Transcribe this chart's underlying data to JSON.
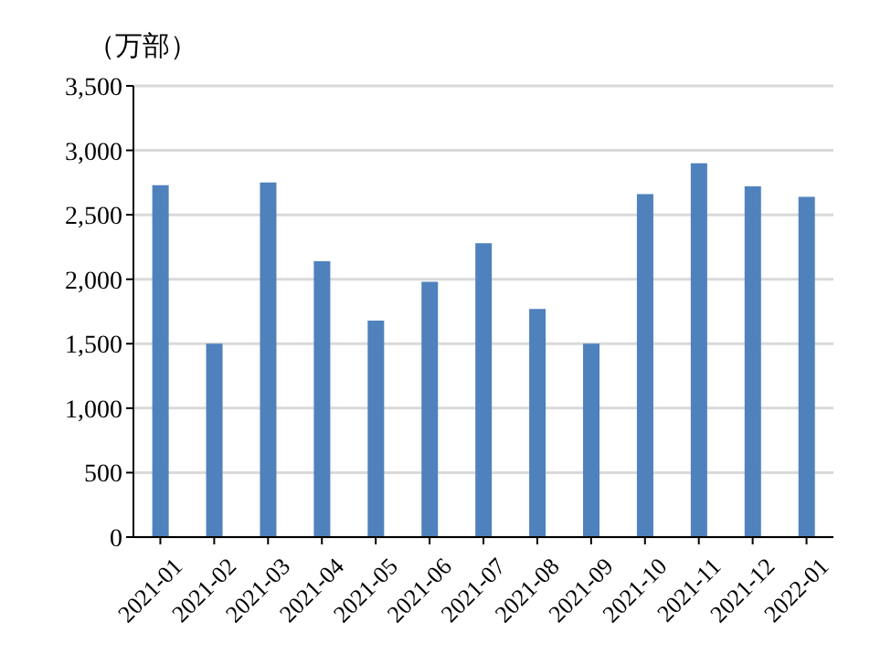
{
  "chart_data": {
    "type": "bar",
    "ylabel": "（万部）",
    "categories": [
      "2021-01",
      "2021-02",
      "2021-03",
      "2021-04",
      "2021-05",
      "2021-06",
      "2021-07",
      "2021-08",
      "2021-09",
      "2021-10",
      "2021-11",
      "2021-12",
      "2022-01"
    ],
    "values": [
      2730,
      1500,
      2750,
      2140,
      1680,
      1980,
      2280,
      1770,
      1500,
      2660,
      2900,
      2720,
      2640
    ],
    "color": "#4f81bd",
    "ylim": [
      0,
      3500
    ],
    "yticks": [
      {
        "value": 0,
        "label": "0"
      },
      {
        "value": 500,
        "label": "500"
      },
      {
        "value": 1000,
        "label": "1,000"
      },
      {
        "value": 1500,
        "label": "1,500"
      },
      {
        "value": 2000,
        "label": "2,000"
      },
      {
        "value": 2500,
        "label": "2,500"
      },
      {
        "value": 3000,
        "label": "3,000"
      },
      {
        "value": 3500,
        "label": "3,500"
      }
    ],
    "grid": "y"
  }
}
